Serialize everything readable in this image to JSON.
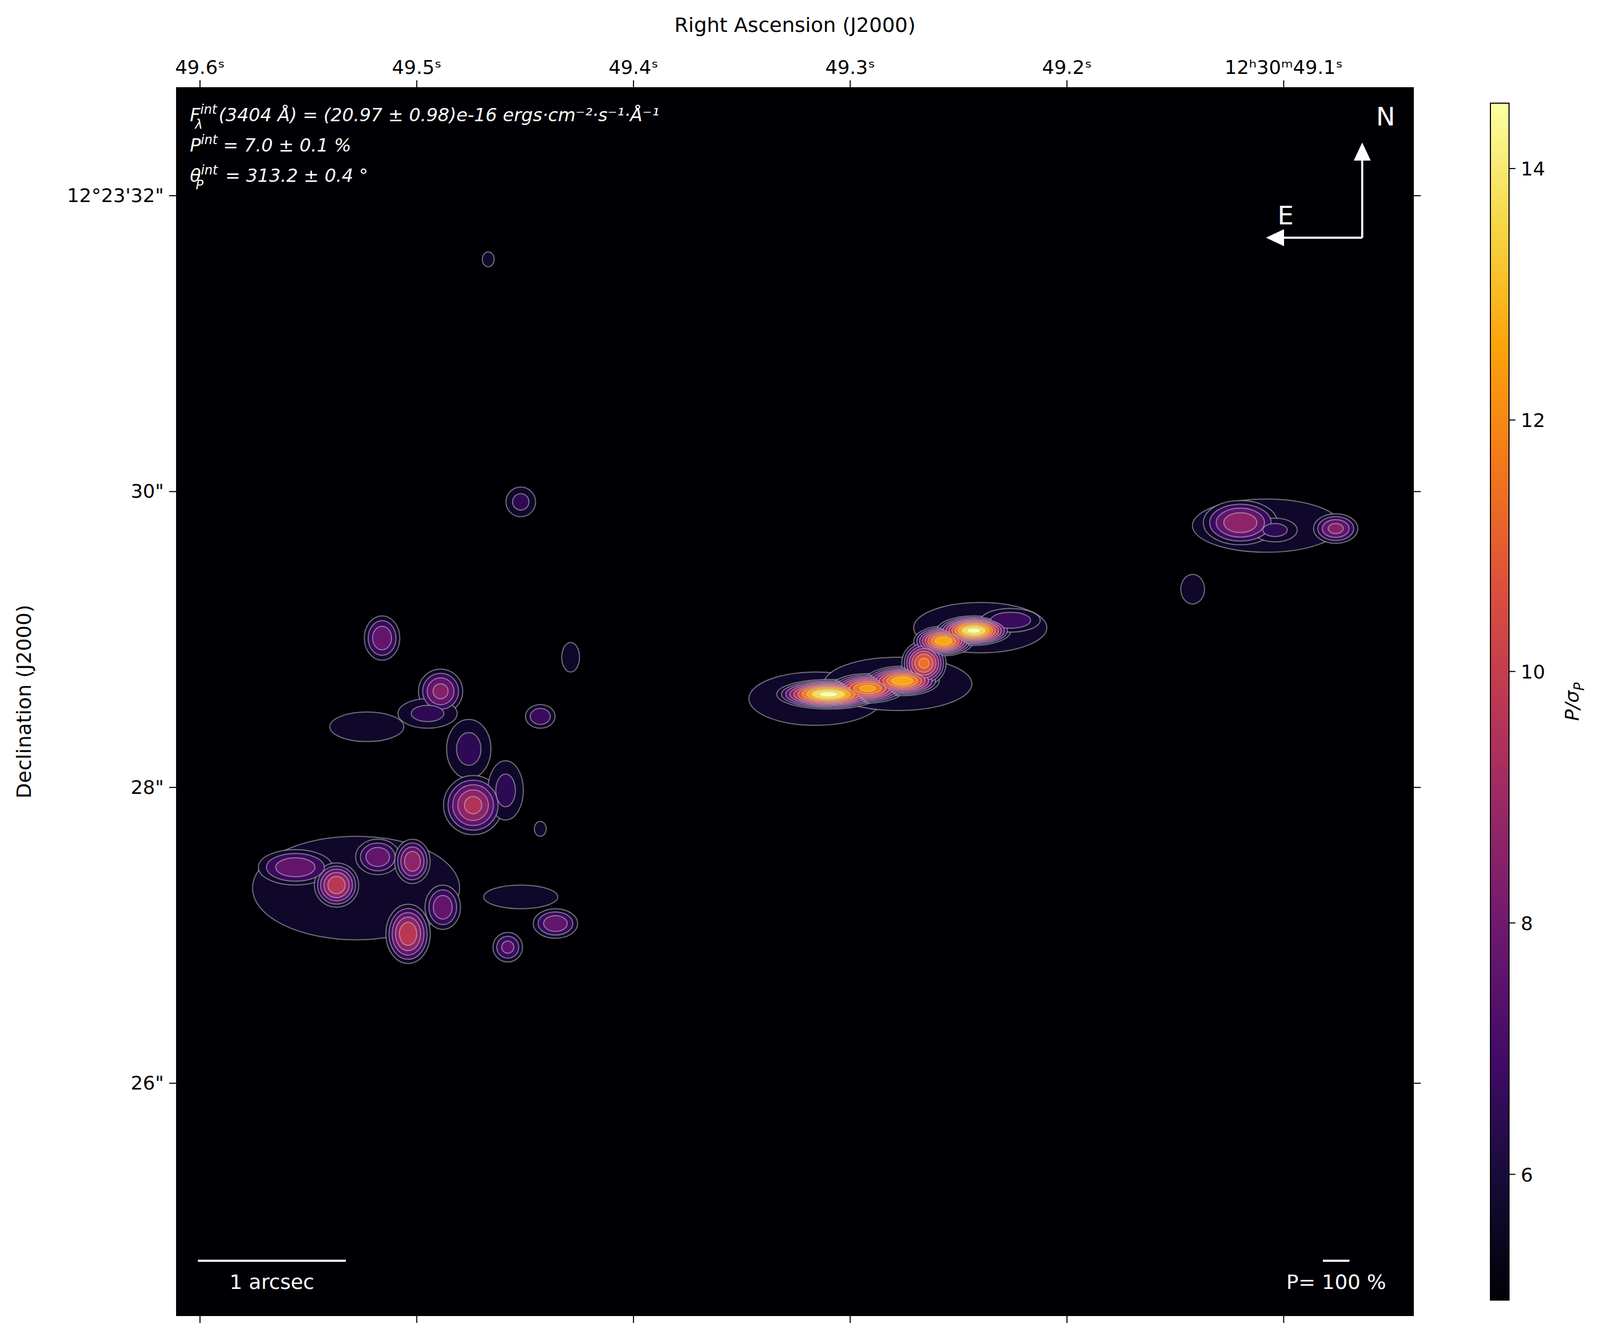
{
  "chart_data": {
    "type": "map",
    "x_label": "Right Ascension (J2000)",
    "y_label": "Declination (J2000)",
    "xlim": [
      49.6108,
      49.0402
    ],
    "xticks": [
      {
        "value": 49.6,
        "label": "49.6ˢ"
      },
      {
        "value": 49.5,
        "label": "49.5ˢ"
      },
      {
        "value": 49.4,
        "label": "49.4ˢ"
      },
      {
        "value": 49.3,
        "label": "49.3ˢ"
      },
      {
        "value": 49.2,
        "label": "49.2ˢ"
      },
      {
        "value": 49.1,
        "label": "12ʰ30ᵐ49.1ˢ"
      }
    ],
    "ylim": [
      24.43,
      32.73
    ],
    "yticks": [
      {
        "value": 32,
        "label": "12°23'32\""
      },
      {
        "value": 30,
        "label": "30\""
      },
      {
        "value": 28,
        "label": "28\""
      },
      {
        "value": 26,
        "label": "26\""
      }
    ],
    "colorbar": {
      "label": {
        "main": "P/σ",
        "sub": "P"
      },
      "range": [
        5,
        14.52
      ],
      "ticks": [
        6,
        8,
        10,
        12,
        14
      ]
    },
    "annotations": [
      {
        "symbol": "F",
        "sub": "λ",
        "sup": "int",
        "text": "(3404 Å) = (20.97 ± 0.98)e-16 ergs·cm⁻²·s⁻¹·Å⁻¹"
      },
      {
        "symbol": "P",
        "sub": "",
        "sup": "int",
        "text": " = 7.0 ± 0.1 %"
      },
      {
        "symbol": "θ",
        "sub": "P",
        "sup": "int",
        "text": " = 313.2 ± 0.4 °"
      }
    ],
    "compass": {
      "north": "N",
      "east": "E"
    },
    "scale_bar": {
      "label": "1 arcsec",
      "length": 1
    },
    "vector_scale": {
      "label": "P= 100 %",
      "value": 100
    },
    "regions": [
      {
        "ra": 49.316,
        "dec": 28.6,
        "rx": 0.45,
        "ry": 0.18,
        "peak": 6
      },
      {
        "ra": 49.278,
        "dec": 28.7,
        "rx": 0.5,
        "ry": 0.18,
        "peak": 6
      },
      {
        "ra": 49.24,
        "dec": 29.08,
        "rx": 0.45,
        "ry": 0.17,
        "peak": 6
      },
      {
        "ra": 49.31,
        "dec": 28.63,
        "rx": 0.35,
        "ry": 0.1,
        "peak": 14.5
      },
      {
        "ra": 49.292,
        "dec": 28.67,
        "rx": 0.25,
        "ry": 0.1,
        "peak": 12.5
      },
      {
        "ra": 49.276,
        "dec": 28.72,
        "rx": 0.25,
        "ry": 0.1,
        "peak": 13
      },
      {
        "ra": 49.266,
        "dec": 28.84,
        "rx": 0.15,
        "ry": 0.15,
        "peak": 11.5
      },
      {
        "ra": 49.257,
        "dec": 28.99,
        "rx": 0.2,
        "ry": 0.1,
        "peak": 13
      },
      {
        "ra": 49.243,
        "dec": 29.06,
        "rx": 0.25,
        "ry": 0.1,
        "peak": 14.5
      },
      {
        "ra": 49.226,
        "dec": 29.13,
        "rx": 0.2,
        "ry": 0.08,
        "peak": 7
      },
      {
        "ra": 49.108,
        "dec": 29.77,
        "rx": 0.5,
        "ry": 0.18,
        "peak": 6
      },
      {
        "ra": 49.12,
        "dec": 29.79,
        "rx": 0.25,
        "ry": 0.15,
        "peak": 9
      },
      {
        "ra": 49.104,
        "dec": 29.74,
        "rx": 0.15,
        "ry": 0.08,
        "peak": 6.5
      },
      {
        "ra": 49.076,
        "dec": 29.75,
        "rx": 0.15,
        "ry": 0.1,
        "peak": 8.5
      },
      {
        "ra": 49.142,
        "dec": 29.34,
        "rx": 0.08,
        "ry": 0.1,
        "peak": 6
      },
      {
        "ra": 49.516,
        "dec": 29.01,
        "rx": 0.12,
        "ry": 0.15,
        "peak": 8
      },
      {
        "ra": 49.489,
        "dec": 28.65,
        "rx": 0.15,
        "ry": 0.15,
        "peak": 8.5
      },
      {
        "ra": 49.523,
        "dec": 28.41,
        "rx": 0.25,
        "ry": 0.1,
        "peak": 6
      },
      {
        "ra": 49.495,
        "dec": 28.5,
        "rx": 0.2,
        "ry": 0.1,
        "peak": 6.5
      },
      {
        "ra": 49.476,
        "dec": 28.26,
        "rx": 0.15,
        "ry": 0.2,
        "peak": 6.5
      },
      {
        "ra": 49.474,
        "dec": 27.88,
        "rx": 0.2,
        "ry": 0.2,
        "peak": 9.5
      },
      {
        "ra": 49.459,
        "dec": 27.98,
        "rx": 0.12,
        "ry": 0.2,
        "peak": 6.5
      },
      {
        "ra": 49.452,
        "dec": 29.93,
        "rx": 0.1,
        "ry": 0.1,
        "peak": 6.5
      },
      {
        "ra": 49.443,
        "dec": 28.48,
        "rx": 0.1,
        "ry": 0.08,
        "peak": 7
      },
      {
        "ra": 49.429,
        "dec": 28.88,
        "rx": 0.06,
        "ry": 0.1,
        "peak": 6
      },
      {
        "ra": 49.467,
        "dec": 31.57,
        "rx": 0.04,
        "ry": 0.05,
        "peak": 6
      },
      {
        "ra": 49.443,
        "dec": 27.72,
        "rx": 0.04,
        "ry": 0.05,
        "peak": 6
      },
      {
        "ra": 49.528,
        "dec": 27.32,
        "rx": 0.7,
        "ry": 0.35,
        "peak": 6
      },
      {
        "ra": 49.556,
        "dec": 27.46,
        "rx": 0.25,
        "ry": 0.12,
        "peak": 8
      },
      {
        "ra": 49.537,
        "dec": 27.34,
        "rx": 0.15,
        "ry": 0.15,
        "peak": 10
      },
      {
        "ra": 49.518,
        "dec": 27.53,
        "rx": 0.15,
        "ry": 0.12,
        "peak": 8
      },
      {
        "ra": 49.502,
        "dec": 27.5,
        "rx": 0.12,
        "ry": 0.15,
        "peak": 9
      },
      {
        "ra": 49.504,
        "dec": 27.01,
        "rx": 0.15,
        "ry": 0.2,
        "peak": 10
      },
      {
        "ra": 49.488,
        "dec": 27.19,
        "rx": 0.12,
        "ry": 0.15,
        "peak": 8
      },
      {
        "ra": 49.436,
        "dec": 27.08,
        "rx": 0.15,
        "ry": 0.1,
        "peak": 8
      },
      {
        "ra": 49.458,
        "dec": 26.92,
        "rx": 0.1,
        "ry": 0.1,
        "peak": 7.5
      },
      {
        "ra": 49.452,
        "dec": 27.26,
        "rx": 0.25,
        "ry": 0.08,
        "peak": 6
      }
    ]
  }
}
